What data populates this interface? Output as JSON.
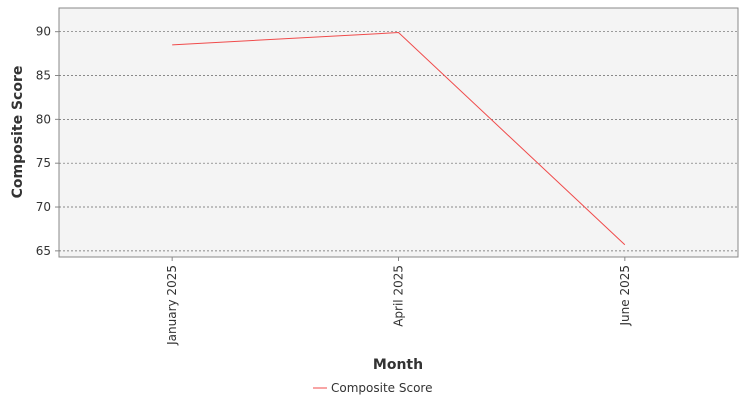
{
  "chart_data": {
    "type": "line",
    "x_label": "Month",
    "y_label": "Composite Score",
    "categories": [
      "January 2025",
      "April 2025",
      "June 2025"
    ],
    "series": [
      {
        "name": "Composite Score",
        "color": "#f04b4b",
        "values": [
          88.5,
          89.9,
          65.7
        ]
      }
    ],
    "ylim": [
      64.3,
      92.7
    ],
    "yticks": [
      65,
      70,
      75,
      80,
      85,
      90
    ],
    "grid": true,
    "legend": "bottom"
  }
}
